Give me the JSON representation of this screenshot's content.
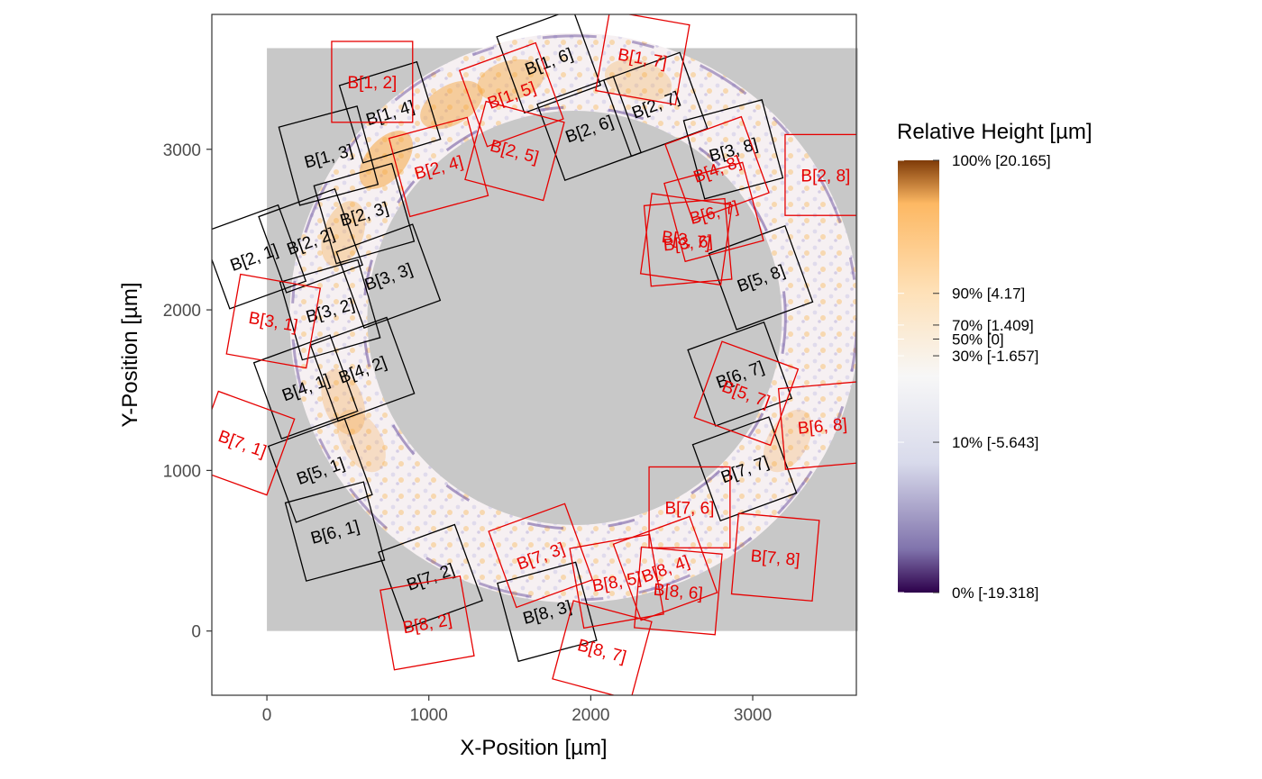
{
  "chart_data": {
    "type": "scatter",
    "xlabel": "X-Position [µm]",
    "ylabel": "Y-Position [µm]",
    "xlim": [
      -340,
      3640
    ],
    "ylim": [
      -400,
      3840
    ],
    "x_ticks": [
      0,
      1000,
      2000,
      3000
    ],
    "y_ticks": [
      0,
      1000,
      2000,
      3000
    ],
    "grid": false,
    "background": {
      "fill": "#c8c8c8",
      "x": [
        0,
        3650
      ],
      "y": [
        0,
        3630
      ]
    },
    "ring": {
      "center": [
        1900,
        1950
      ],
      "inner_radius": 1280,
      "outer_radius": 1760,
      "colors": {
        "high": "#f5a33a",
        "mid": "#f7f7f7",
        "low": "#5b3f93"
      }
    },
    "legend": {
      "title": "Relative Height [µm]",
      "position": "right",
      "gradient": [
        {
          "q": 0,
          "color": "#2d004b"
        },
        {
          "q": 0.1,
          "color": "#8073ac"
        },
        {
          "q": 0.3,
          "color": "#d8daeb"
        },
        {
          "q": 0.5,
          "color": "#f7f7f7"
        },
        {
          "q": 0.7,
          "color": "#fee0b6"
        },
        {
          "q": 0.9,
          "color": "#fdb863"
        },
        {
          "q": 1.0,
          "color": "#7f3b08"
        }
      ],
      "entries": [
        {
          "label": "100% [20.165]",
          "value": 20.165
        },
        {
          "label": "90% [4.17]",
          "value": 4.17
        },
        {
          "label": "70% [1.409]",
          "value": 1.409
        },
        {
          "label": "50% [0]",
          "value": 0
        },
        {
          "label": "30% [-1.657]",
          "value": -1.657
        },
        {
          "label": "10% [-5.643]",
          "value": -5.643
        },
        {
          "label": "0% [-19.318]",
          "value": -19.318
        }
      ],
      "range": [
        -19.318,
        20.165
      ]
    },
    "series": [
      {
        "color": "#000000",
        "boxes": [
          {
            "label": "B[1, 3]",
            "x": 380,
            "y": 2960,
            "angle": -15
          },
          {
            "label": "B[1, 4]",
            "x": 760,
            "y": 3230,
            "angle": -17
          },
          {
            "label": "B[1, 6]",
            "x": 1740,
            "y": 3550,
            "angle": -20
          },
          {
            "label": "B[2, 1]",
            "x": -80,
            "y": 2330,
            "angle": -20
          },
          {
            "label": "B[2, 2]",
            "x": 270,
            "y": 2430,
            "angle": -20
          },
          {
            "label": "B[2, 3]",
            "x": 600,
            "y": 2600,
            "angle": -16
          },
          {
            "label": "B[2, 6]",
            "x": 1990,
            "y": 3130,
            "angle": -20
          },
          {
            "label": "B[2, 7]",
            "x": 2400,
            "y": 3280,
            "angle": -20
          },
          {
            "label": "B[3, 2]",
            "x": 390,
            "y": 2000,
            "angle": -16
          },
          {
            "label": "B[3, 3]",
            "x": 750,
            "y": 2210,
            "angle": -20
          },
          {
            "label": "B[3, 8]",
            "x": 2880,
            "y": 3000,
            "angle": -15
          },
          {
            "label": "B[4, 1]",
            "x": 240,
            "y": 1520,
            "angle": -20
          },
          {
            "label": "B[4, 2]",
            "x": 590,
            "y": 1630,
            "angle": -20
          },
          {
            "label": "B[5, 1]",
            "x": 330,
            "y": 1000,
            "angle": -20
          },
          {
            "label": "B[5, 8]",
            "x": 3050,
            "y": 2200,
            "angle": -20
          },
          {
            "label": "B[6, 1]",
            "x": 420,
            "y": 620,
            "angle": -15
          },
          {
            "label": "B[6, 7]",
            "x": 2920,
            "y": 1600,
            "angle": -20
          },
          {
            "label": "B[7, 2]",
            "x": 1010,
            "y": 340,
            "angle": -20
          },
          {
            "label": "B[7, 7]",
            "x": 2950,
            "y": 1010,
            "angle": -20
          },
          {
            "label": "B[8, 3]",
            "x": 1730,
            "y": 120,
            "angle": -15
          }
        ]
      },
      {
        "color": "#e60000",
        "boxes": [
          {
            "label": "B[1, 2]",
            "x": 650,
            "y": 3420,
            "angle": 0
          },
          {
            "label": "B[1, 5]",
            "x": 1510,
            "y": 3340,
            "angle": -20
          },
          {
            "label": "B[1, 7]",
            "x": 2320,
            "y": 3570,
            "angle": 10
          },
          {
            "label": "B[2, 4]",
            "x": 1060,
            "y": 2890,
            "angle": -15
          },
          {
            "label": "B[2, 5]",
            "x": 1530,
            "y": 2990,
            "angle": 15
          },
          {
            "label": "B[2, 8]",
            "x": 3450,
            "y": 2840,
            "angle": 0
          },
          {
            "label": "B[3, 1]",
            "x": 40,
            "y": 1930,
            "angle": 10
          },
          {
            "label": "B[3, 6]",
            "x": 2600,
            "y": 2420,
            "angle": -5
          },
          {
            "label": "B[3, 7]",
            "x": 2590,
            "y": 2440,
            "angle": 8
          },
          {
            "label": "B[4, 8]",
            "x": 2780,
            "y": 2880,
            "angle": -20
          },
          {
            "label": "B[5, 7]",
            "x": 2960,
            "y": 1480,
            "angle": 20
          },
          {
            "label": "B[6, 7]",
            "x": 2760,
            "y": 2610,
            "angle": -15
          },
          {
            "label": "B[6, 8]",
            "x": 3430,
            "y": 1280,
            "angle": -5
          },
          {
            "label": "B[7, 1]",
            "x": -150,
            "y": 1170,
            "angle": 20
          },
          {
            "label": "B[7, 3]",
            "x": 1690,
            "y": 470,
            "angle": -20
          },
          {
            "label": "B[7, 6]",
            "x": 2610,
            "y": 770,
            "angle": 0
          },
          {
            "label": "B[7, 8]",
            "x": 3140,
            "y": 460,
            "angle": 5
          },
          {
            "label": "B[8, 2]",
            "x": 990,
            "y": 50,
            "angle": -10
          },
          {
            "label": "B[8, 4]",
            "x": 2460,
            "y": 390,
            "angle": -20
          },
          {
            "label": "B[8, 5]",
            "x": 2160,
            "y": 310,
            "angle": -10
          },
          {
            "label": "B[8, 6]",
            "x": 2540,
            "y": 250,
            "angle": 5
          },
          {
            "label": "B[8, 7]",
            "x": 2070,
            "y": -120,
            "angle": 15
          }
        ]
      }
    ]
  }
}
